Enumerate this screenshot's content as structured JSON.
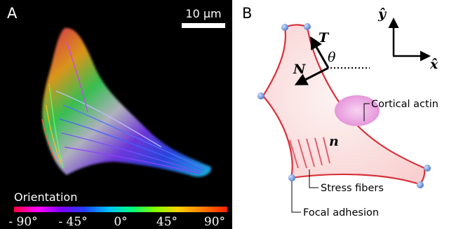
{
  "panel_a": {
    "letter": "A",
    "scale_bar_label": "10 μm",
    "colorbar_title": "Orientation",
    "colorbar_ticks": [
      "- 90°",
      "- 45°",
      "0°",
      "45°",
      "90°"
    ],
    "colorbar_stops": [
      "#ff0040",
      "#ff00ff",
      "#8000ff",
      "#2040ff",
      "#00c0ff",
      "#00ff80",
      "#80ff00",
      "#ffd000",
      "#ff8000",
      "#ff2000"
    ]
  },
  "panel_b": {
    "letter": "B",
    "axis_y": "ŷ",
    "axis_x": "x̂",
    "tangent_label": "T",
    "normal_label": "N",
    "angle_label": "θ",
    "edge_normal_label": "n",
    "cortical_actin_label": "Cortical actin",
    "stress_fibers_label": "Stress fibers",
    "focal_adhesion_label": "Focal adhesion",
    "cell_outline_color": "#d8313b",
    "cell_fill_color": "#fde6e6",
    "nucleus_color": "#e38ad6",
    "adhesion_color": "#5f8ed8"
  }
}
